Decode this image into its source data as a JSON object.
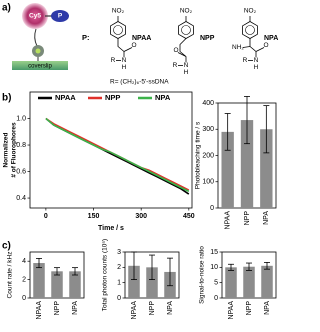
{
  "panel_labels": [
    "a)",
    "b)",
    "c)"
  ],
  "panel_a": {
    "dye": "Cy5",
    "protein": "P",
    "surface": "coverslip",
    "prefix": "P:",
    "compounds": [
      {
        "name": "NPAA",
        "nitro": "NO₂",
        "carbonyl": "O",
        "amide": "N",
        "h": "H",
        "r": "R"
      },
      {
        "name": "NPP",
        "nitro": "NO₂",
        "carbonyl": "O",
        "amide": "N",
        "h": "H",
        "r": "R"
      },
      {
        "name": "NPA",
        "nitro": "NO₂",
        "carbonyl": "O",
        "amide": "N",
        "h": "H",
        "r": "R",
        "amine": "NH₂"
      }
    ],
    "footnote": "R= (CH₂)₆-5'-ssDNA"
  },
  "chart_data": [
    {
      "type": "line",
      "ylabel": [
        "Normalized",
        "# of Fluorophores"
      ],
      "xlabel": "Time / s",
      "x": [
        0,
        25,
        50,
        75,
        100,
        125,
        150,
        175,
        200,
        225,
        250,
        275,
        300,
        325,
        350,
        375,
        400,
        425,
        450
      ],
      "series": [
        {
          "name": "NPAA",
          "color": "#000000",
          "values": [
            1.0,
            0.95,
            0.92,
            0.89,
            0.86,
            0.83,
            0.8,
            0.77,
            0.74,
            0.71,
            0.68,
            0.65,
            0.62,
            0.59,
            0.56,
            0.53,
            0.5,
            0.47,
            0.43
          ]
        },
        {
          "name": "NPP",
          "color": "#e0302a",
          "values": [
            1.0,
            0.96,
            0.93,
            0.9,
            0.87,
            0.84,
            0.81,
            0.78,
            0.75,
            0.72,
            0.69,
            0.66,
            0.63,
            0.61,
            0.58,
            0.55,
            0.52,
            0.49,
            0.46
          ]
        },
        {
          "name": "NPA",
          "color": "#3cb34a",
          "values": [
            1.0,
            0.95,
            0.92,
            0.89,
            0.86,
            0.83,
            0.8,
            0.77,
            0.75,
            0.72,
            0.69,
            0.66,
            0.63,
            0.6,
            0.57,
            0.54,
            0.51,
            0.48,
            0.45
          ]
        }
      ],
      "xlim": [
        -50,
        460
      ],
      "xticks": [
        0,
        150,
        300,
        450
      ],
      "ylim": [
        0.325,
        1.2
      ],
      "yticks": [
        0.4,
        0.6,
        0.8,
        {
          "value": 1,
          "label": "1.0"
        }
      ]
    },
    {
      "type": "bar",
      "ylabel": "Photobleaching time / s",
      "categories": [
        "NPAA",
        "NPP",
        "NPA"
      ],
      "values": [
        290,
        335,
        300
      ],
      "errors": [
        70,
        90,
        90
      ],
      "color": "#8c8c8c",
      "ylim": [
        0,
        400
      ],
      "yticks": [
        0,
        100,
        200,
        300,
        400
      ]
    },
    {
      "type": "bar",
      "ylabel": "Count rate / kHz",
      "categories": [
        "NPAA",
        "NPP",
        "NPA"
      ],
      "values": [
        3.8,
        2.9,
        2.9
      ],
      "errors": [
        0.5,
        0.4,
        0.4
      ],
      "color": "#8c8c8c",
      "ylim": [
        0,
        5
      ],
      "yticks": [
        0,
        2,
        4
      ]
    },
    {
      "type": "bar",
      "ylabel": "Total photon counts (10⁵)",
      "categories": [
        "NPAA",
        "NPP",
        "NPA"
      ],
      "values": [
        2.1,
        2.0,
        1.7
      ],
      "errors": [
        0.9,
        0.8,
        0.9
      ],
      "color": "#8c8c8c",
      "ylim": [
        0,
        3
      ],
      "yticks": [
        0,
        1,
        2,
        3
      ]
    },
    {
      "type": "bar",
      "ylabel": "Signal-to-noise ratio",
      "categories": [
        "NPAA",
        "NPP",
        "NPA"
      ],
      "values": [
        10,
        10.2,
        10.5
      ],
      "errors": [
        1,
        1.2,
        1.1
      ],
      "color": "#8c8c8c",
      "ylim": [
        0,
        15
      ],
      "yticks": [
        0,
        5,
        10,
        15
      ]
    }
  ]
}
